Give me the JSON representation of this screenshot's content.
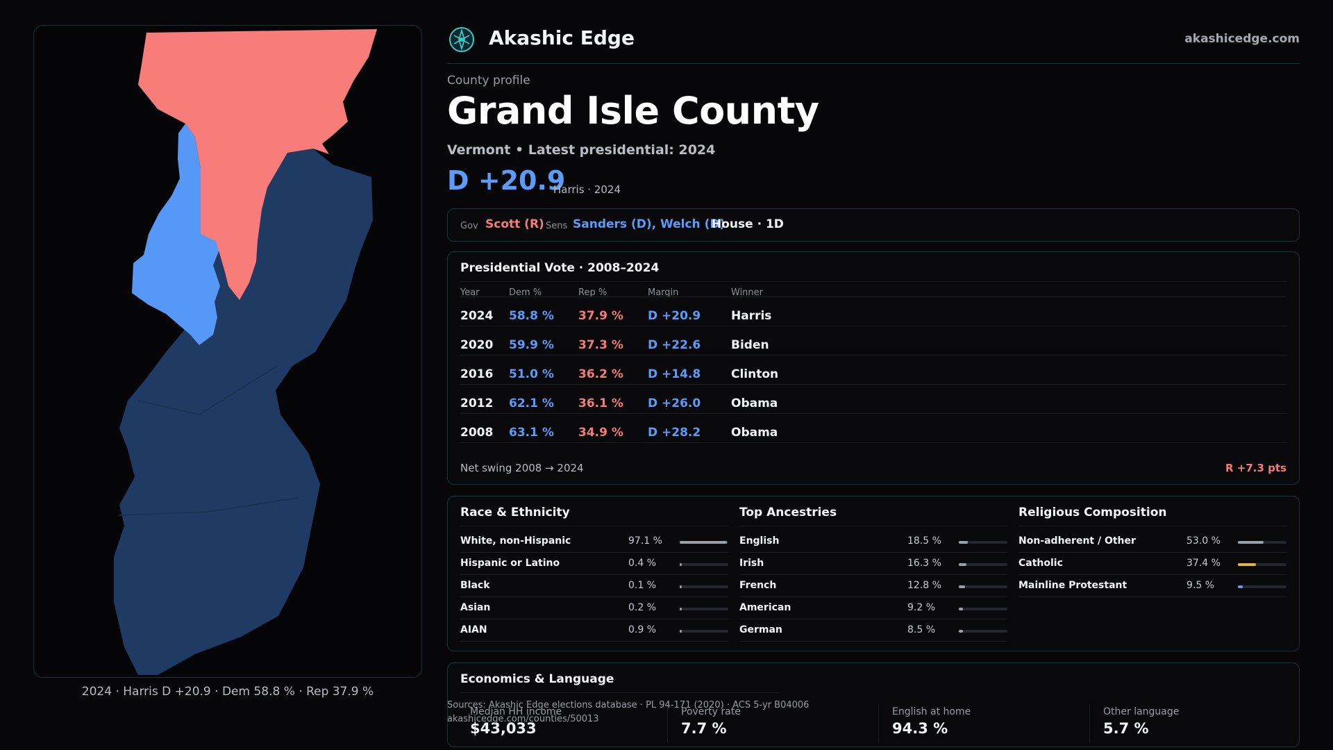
{
  "map": {
    "caption": "2024 · Harris D +20.9 · Dem 58.8 % · Rep 37.9 %",
    "colors": {
      "rep": "#f87d7a",
      "dem_light": "#5798f6",
      "dem_dark": "#1f3b64"
    }
  },
  "header": {
    "brand": "Akashic Edge",
    "site": "akashicedge.com",
    "logo_icon": "compass-logo-icon"
  },
  "profile": {
    "eyebrow": "County profile",
    "title": "Grand Isle County",
    "subtitle": "Vermont • Latest presidential: 2024",
    "margin": "D +20.9",
    "margin_note": "Harris · 2024"
  },
  "officials": {
    "gov_label": "Gov",
    "gov_value": "Scott (R)",
    "sens_label": "Sens",
    "sens_value": "Sanders (D), Welch (D)",
    "house_value": "House · 1D"
  },
  "presidential": {
    "title": "Presidential Vote · 2008–2024",
    "headers": [
      "Year",
      "Dem %",
      "Rep %",
      "Margin",
      "Winner"
    ],
    "rows": [
      {
        "year": "2024",
        "dem": "58.8 %",
        "rep": "37.9 %",
        "margin": "D +20.9",
        "winner": "Harris"
      },
      {
        "year": "2020",
        "dem": "59.9 %",
        "rep": "37.3 %",
        "margin": "D +22.6",
        "winner": "Biden"
      },
      {
        "year": "2016",
        "dem": "51.0 %",
        "rep": "36.2 %",
        "margin": "D +14.8",
        "winner": "Clinton"
      },
      {
        "year": "2012",
        "dem": "62.1 %",
        "rep": "36.1 %",
        "margin": "D +26.0",
        "winner": "Obama"
      },
      {
        "year": "2008",
        "dem": "63.1 %",
        "rep": "34.9 %",
        "margin": "D +28.2",
        "winner": "Obama"
      }
    ],
    "swing_label": "Net swing 2008 → 2024",
    "swing_value": "R +7.3 pts"
  },
  "demographics": {
    "race": {
      "title": "Race & Ethnicity",
      "items": [
        {
          "label": "White, non-Hispanic",
          "pct": "97.1 %",
          "value": 97.1
        },
        {
          "label": "Hispanic or Latino",
          "pct": "0.4 %",
          "value": 0.4
        },
        {
          "label": "Black",
          "pct": "0.1 %",
          "value": 0.1
        },
        {
          "label": "Asian",
          "pct": "0.2 %",
          "value": 0.2
        },
        {
          "label": "AIAN",
          "pct": "0.9 %",
          "value": 0.9
        }
      ]
    },
    "ancestry": {
      "title": "Top Ancestries",
      "items": [
        {
          "label": "English",
          "pct": "18.5 %",
          "value": 18.5
        },
        {
          "label": "Irish",
          "pct": "16.3 %",
          "value": 16.3
        },
        {
          "label": "French",
          "pct": "12.8 %",
          "value": 12.8
        },
        {
          "label": "American",
          "pct": "9.2 %",
          "value": 9.2
        },
        {
          "label": "German",
          "pct": "8.5 %",
          "value": 8.5
        }
      ]
    },
    "religion": {
      "title": "Religious Composition",
      "items": [
        {
          "label": "Non-adherent / Other",
          "pct": "53.0 %",
          "value": 53.0,
          "color": "#9aa0a8"
        },
        {
          "label": "Catholic",
          "pct": "37.4 %",
          "value": 37.4,
          "color": "#e8b62c"
        },
        {
          "label": "Mainline Protestant",
          "pct": "9.5 %",
          "value": 9.5,
          "color": "#5b9cf8"
        }
      ]
    }
  },
  "economics": {
    "title": "Economics & Language",
    "items": [
      {
        "label": "Median HH income",
        "value": "$43,033"
      },
      {
        "label": "Poverty rate",
        "value": "7.7 %"
      },
      {
        "label": "English at home",
        "value": "94.3 %"
      },
      {
        "label": "Other language",
        "value": "5.7 %"
      }
    ]
  },
  "sources": {
    "line1": "Sources: Akashic Edge elections database · PL 94-171 (2020) · ACS 5-yr B04006",
    "line2": "akashicedge.com/counties/50013"
  }
}
